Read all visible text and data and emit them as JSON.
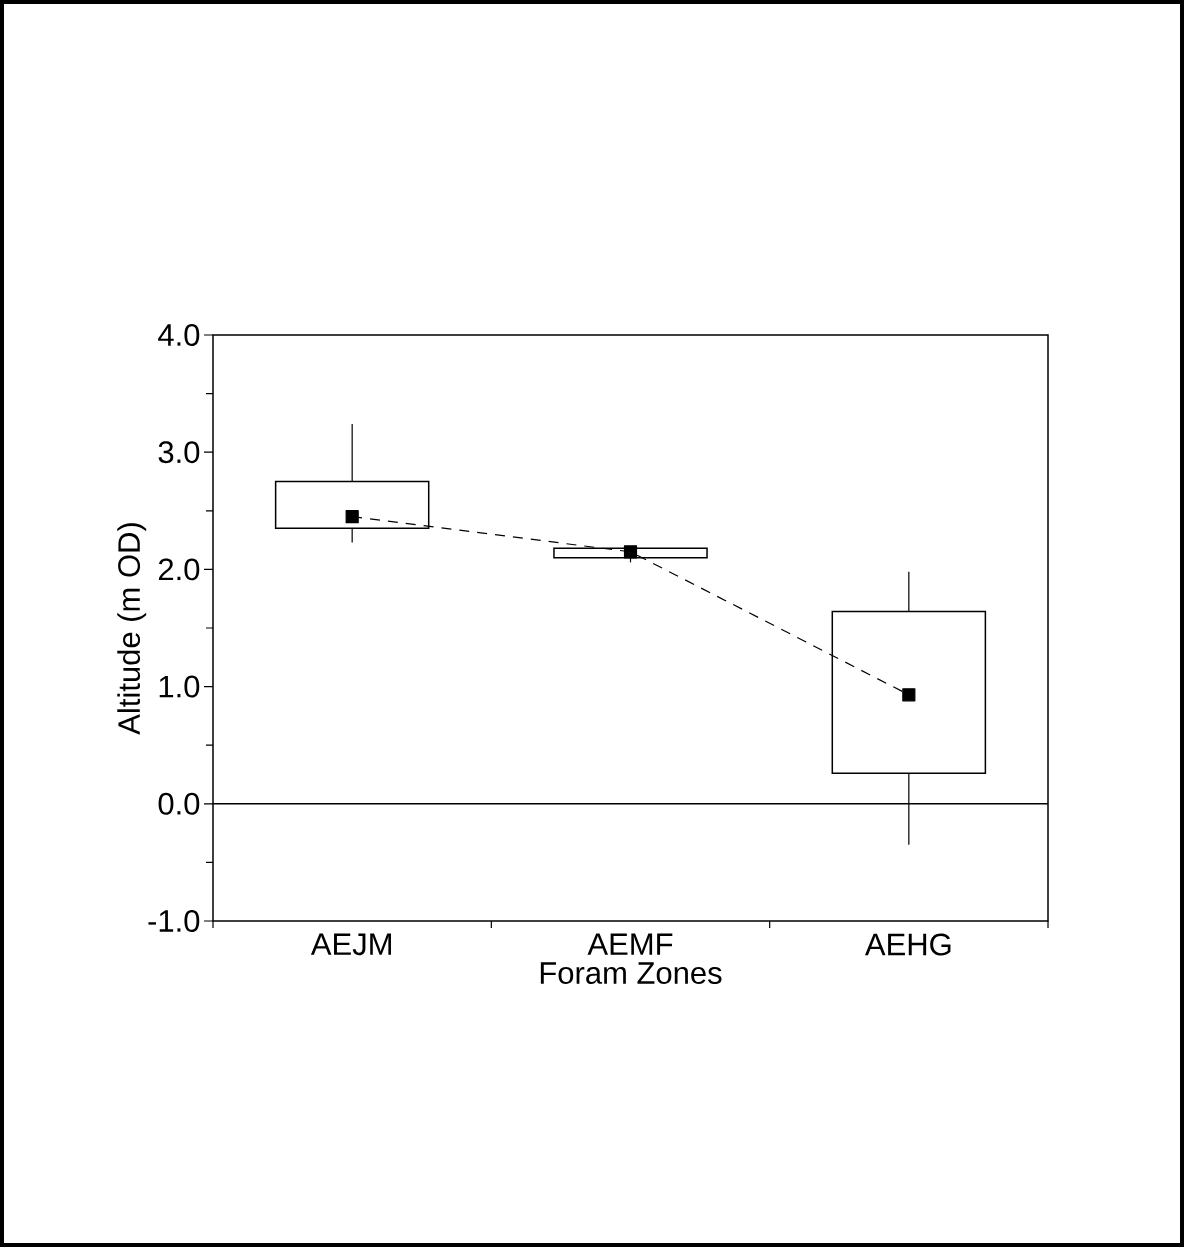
{
  "chart_data": {
    "type": "box",
    "xlabel": "Foram Zones",
    "ylabel": "Altitude (m OD)",
    "categories": [
      "AEJM",
      "AEMF",
      "AEHG"
    ],
    "ylim": [
      -1,
      4
    ],
    "yticks": [
      {
        "value": -1,
        "label": "-1.0"
      },
      {
        "value": 0,
        "label": "0.0"
      },
      {
        "value": 1,
        "label": "1.0"
      },
      {
        "value": 2,
        "label": "2.0"
      },
      {
        "value": 3,
        "label": "3.0"
      },
      {
        "value": 4,
        "label": "4.0"
      }
    ],
    "ref_lines": [
      {
        "axis": "y",
        "value": 0,
        "color": "#000000"
      }
    ],
    "series": [
      {
        "type": "box",
        "color": "#000000",
        "boxes": [
          {
            "low": 2.23,
            "q1": 2.35,
            "q3": 2.75,
            "high": 3.24
          },
          {
            "low": 2.06,
            "q1": 2.1,
            "q3": 2.18,
            "high": 2.18
          },
          {
            "low": -0.35,
            "q1": 0.26,
            "q3": 1.64,
            "high": 1.98
          }
        ]
      },
      {
        "type": "line",
        "color": "#000000",
        "values": [
          2.45,
          2.15,
          0.93
        ],
        "marker": "square",
        "line_style": "dashed"
      }
    ]
  }
}
